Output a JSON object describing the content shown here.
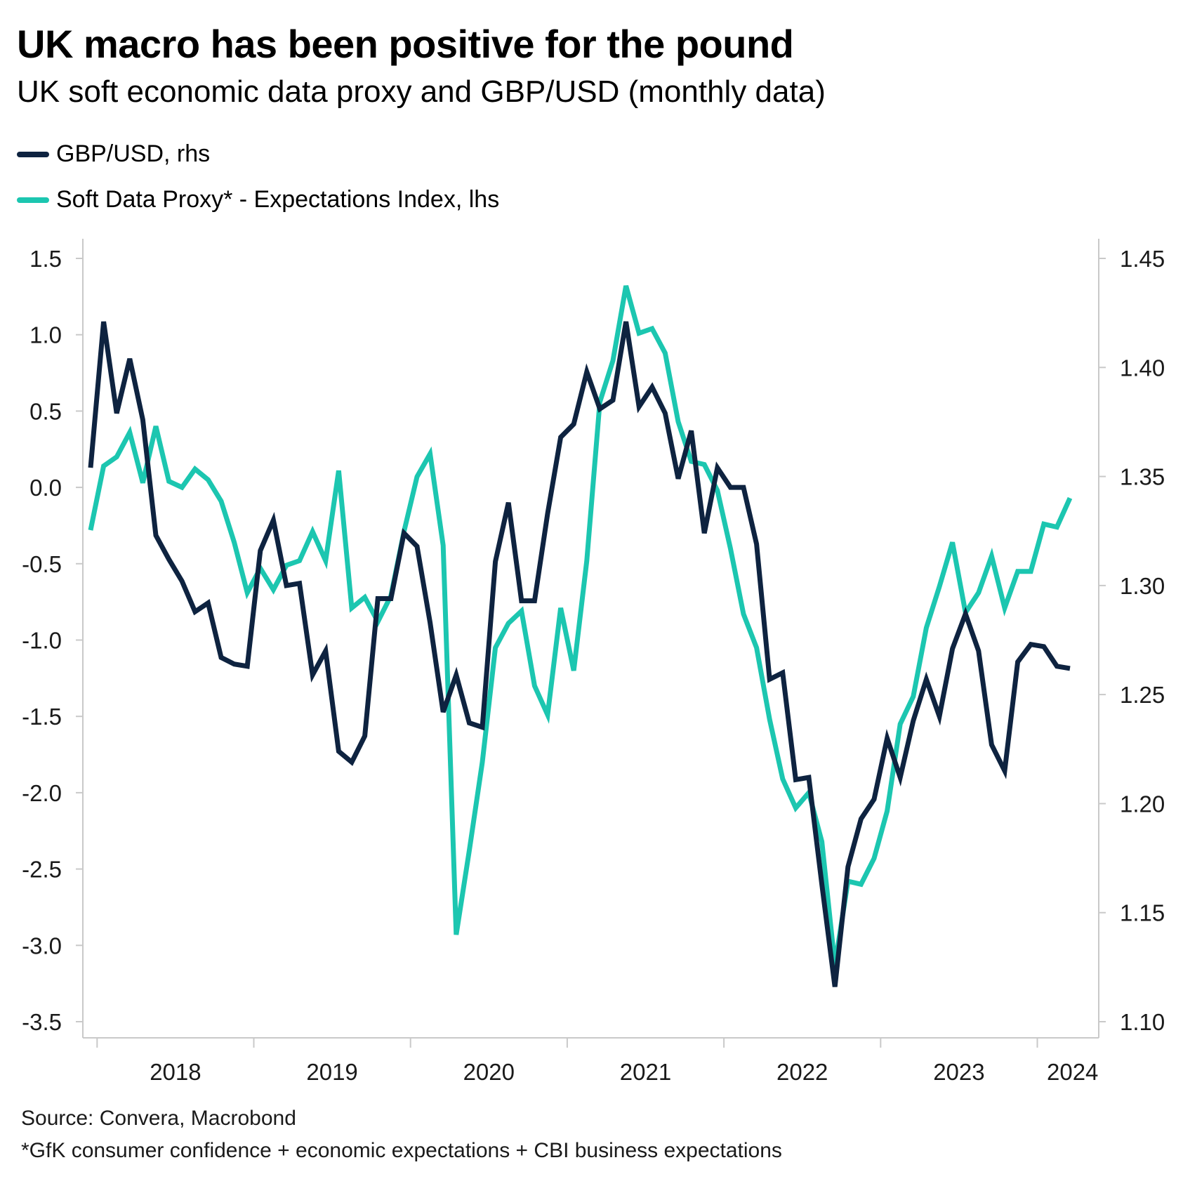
{
  "title": "UK macro has been positive for the pound",
  "subtitle": "UK soft economic data proxy and GBP/USD (monthly data)",
  "source": "Source: Convera, Macrobond",
  "footnote": "*GfK consumer confidence + economic expectations + CBI business expectations",
  "colors": {
    "gbp": "#0e2340",
    "soft": "#1cc6b0",
    "axis": "#c9c9c9"
  },
  "chart_data": {
    "type": "line",
    "title": "UK macro has been positive for the pound",
    "subtitle": "UK soft economic data proxy and GBP/USD (monthly data)",
    "x_start": "2017-12",
    "x_labels": [
      "2018",
      "2019",
      "2020",
      "2021",
      "2022",
      "2023",
      "2024"
    ],
    "left_axis": {
      "range": [
        -3.5,
        1.5
      ],
      "ticks": [
        "1.5",
        "1.0",
        "0.5",
        "0.0",
        "-0.5",
        "-1.0",
        "-1.5",
        "-2.0",
        "-2.5",
        "-3.0",
        "-3.5"
      ]
    },
    "right_axis": {
      "range": [
        1.1,
        1.45
      ],
      "ticks": [
        "1.45",
        "1.40",
        "1.35",
        "1.30",
        "1.25",
        "1.20",
        "1.15",
        "1.10"
      ]
    },
    "legend_position": "top-left",
    "series": [
      {
        "name": "GBP/USD, rhs",
        "axis": "right",
        "color": "#0e2340",
        "values": [
          1.354,
          1.421,
          1.379,
          1.404,
          1.376,
          1.323,
          1.312,
          1.302,
          1.288,
          1.292,
          1.267,
          1.264,
          1.263,
          1.316,
          1.33,
          1.3,
          1.301,
          1.259,
          1.27,
          1.224,
          1.219,
          1.231,
          1.294,
          1.294,
          1.324,
          1.318,
          1.283,
          1.242,
          1.259,
          1.237,
          1.235,
          1.311,
          1.338,
          1.293,
          1.293,
          1.333,
          1.368,
          1.374,
          1.398,
          1.381,
          1.385,
          1.421,
          1.382,
          1.391,
          1.379,
          1.349,
          1.371,
          1.324,
          1.354,
          1.345,
          1.345,
          1.319,
          1.257,
          1.26,
          1.211,
          1.212,
          1.163,
          1.116,
          1.171,
          1.193,
          1.202,
          1.23,
          1.212,
          1.238,
          1.257,
          1.24,
          1.271,
          1.287,
          1.27,
          1.227,
          1.215,
          1.265,
          1.273,
          1.272,
          1.263,
          1.262
        ]
      },
      {
        "name": "Soft Data Proxy* - Expectations Index, lhs",
        "axis": "left",
        "color": "#1cc6b0",
        "values": [
          -0.28,
          0.14,
          0.2,
          0.36,
          0.03,
          0.4,
          0.04,
          0.0,
          0.12,
          0.05,
          -0.09,
          -0.36,
          -0.69,
          -0.53,
          -0.67,
          -0.51,
          -0.48,
          -0.29,
          -0.48,
          0.11,
          -0.79,
          -0.72,
          -0.88,
          -0.71,
          -0.29,
          0.07,
          0.22,
          -0.38,
          -2.93,
          -2.38,
          -1.8,
          -1.05,
          -0.89,
          -0.81,
          -1.3,
          -1.49,
          -0.79,
          -1.2,
          -0.48,
          0.56,
          0.83,
          1.32,
          1.01,
          1.04,
          0.88,
          0.43,
          0.17,
          0.15,
          -0.02,
          -0.4,
          -0.83,
          -1.05,
          -1.52,
          -1.91,
          -2.1,
          -2.0,
          -2.32,
          -3.13,
          -2.58,
          -2.6,
          -2.43,
          -2.12,
          -1.55,
          -1.37,
          -0.92,
          -0.65,
          -0.36,
          -0.82,
          -0.69,
          -0.45,
          -0.79,
          -0.55,
          -0.55,
          -0.24,
          -0.26,
          -0.07
        ]
      }
    ]
  }
}
